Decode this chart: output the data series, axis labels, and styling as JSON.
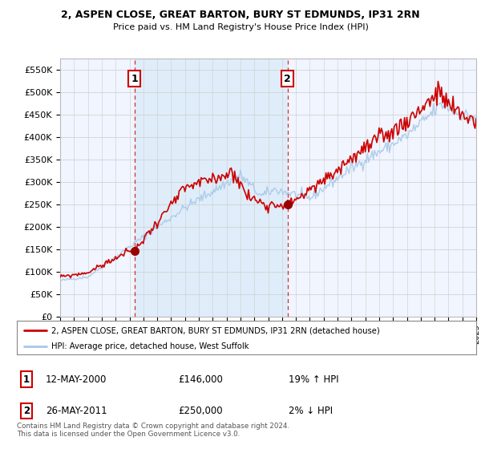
{
  "title1": "2, ASPEN CLOSE, GREAT BARTON, BURY ST EDMUNDS, IP31 2RN",
  "title2": "Price paid vs. HM Land Registry's House Price Index (HPI)",
  "ylabel_ticks": [
    "£0",
    "£50K",
    "£100K",
    "£150K",
    "£200K",
    "£250K",
    "£300K",
    "£350K",
    "£400K",
    "£450K",
    "£500K",
    "£550K"
  ],
  "ytick_values": [
    0,
    50000,
    100000,
    150000,
    200000,
    250000,
    300000,
    350000,
    400000,
    450000,
    500000,
    550000
  ],
  "ylim": [
    0,
    575000
  ],
  "x_start_year": 1995,
  "x_end_year": 2025,
  "sale1_year": 2000.37,
  "sale1_price": 146000,
  "sale2_year": 2011.39,
  "sale2_price": 250000,
  "hpi_color": "#a8c8e8",
  "price_color": "#cc0000",
  "background_color": "#ffffff",
  "plot_bg_color": "#ffffff",
  "shade_color": "#ddeeff",
  "legend_label1": "2, ASPEN CLOSE, GREAT BARTON, BURY ST EDMUNDS, IP31 2RN (detached house)",
  "legend_label2": "HPI: Average price, detached house, West Suffolk",
  "note1_num": "1",
  "note1_date": "12-MAY-2000",
  "note1_price": "£146,000",
  "note1_hpi": "19% ↑ HPI",
  "note2_num": "2",
  "note2_date": "26-MAY-2011",
  "note2_price": "£250,000",
  "note2_hpi": "2% ↓ HPI",
  "footer": "Contains HM Land Registry data © Crown copyright and database right 2024.\nThis data is licensed under the Open Government Licence v3.0."
}
